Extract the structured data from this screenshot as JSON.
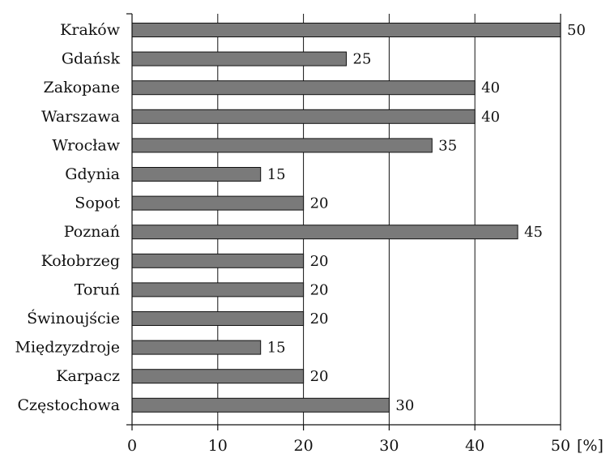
{
  "chart_data": {
    "type": "bar",
    "orientation": "horizontal",
    "categories": [
      "Kraków",
      "Gdańsk",
      "Zakopane",
      "Warszawa",
      "Wrocław",
      "Gdynia",
      "Sopot",
      "Poznań",
      "Kołobrzeg",
      "Toruń",
      "Świnoujście",
      "Międzyzdroje",
      "Karpacz",
      "Częstochowa"
    ],
    "values": [
      50,
      25,
      40,
      40,
      35,
      15,
      20,
      45,
      20,
      20,
      20,
      15,
      20,
      30
    ],
    "xlim": [
      0,
      50
    ],
    "x_ticks": [
      0,
      10,
      20,
      30,
      40,
      50
    ],
    "x_unit": "[%]",
    "grid": "vertical",
    "bar_color": "#7a7a7a",
    "title": "",
    "xlabel": "",
    "ylabel": ""
  }
}
